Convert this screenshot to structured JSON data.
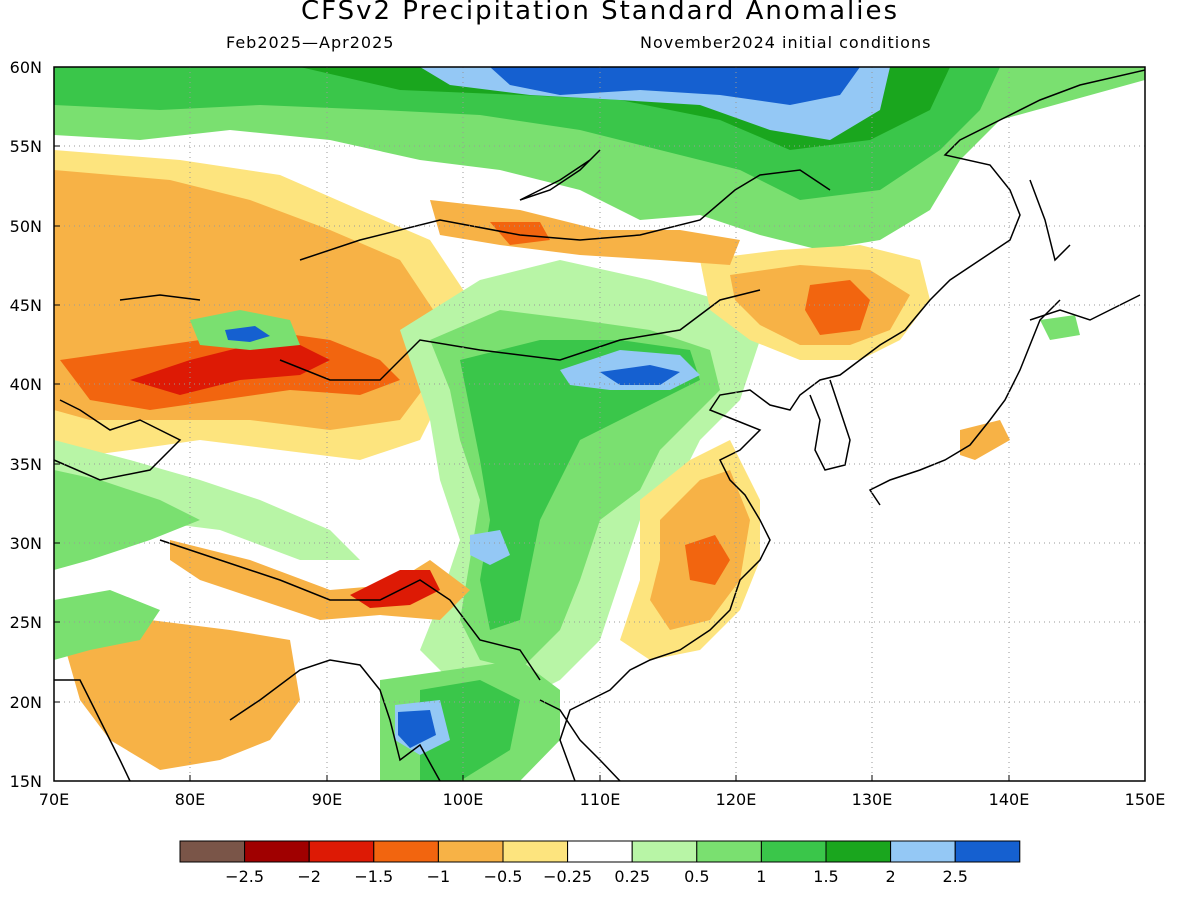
{
  "title": "CFSv2 Precipitation Standard Anomalies",
  "subtitle_left": "Feb2025—Apr2025",
  "subtitle_right": "November2024 initial conditions",
  "lon_labels": [
    "70E",
    "80E",
    "90E",
    "100E",
    "110E",
    "120E",
    "130E",
    "140E",
    "150E"
  ],
  "lat_labels": [
    "15N",
    "20N",
    "25N",
    "30N",
    "35N",
    "40N",
    "45N",
    "50N",
    "55N",
    "60N"
  ],
  "legend": {
    "labels": [
      "−2.5",
      "−2",
      "−1.5",
      "−1",
      "−0.5",
      "−0.25",
      "0.25",
      "0.5",
      "1",
      "1.5",
      "2",
      "2.5"
    ],
    "colors": [
      "#7a5548",
      "#a00000",
      "#dd1a05",
      "#f2650f",
      "#f7b246",
      "#fde47e",
      "#ffffff",
      "#b8f5a6",
      "#7ae070",
      "#3ac64a",
      "#1aa61e",
      "#94c8f5",
      "#1560d0"
    ]
  },
  "colors": {
    "green_light": "#b8f5a6",
    "green": "#7ae070",
    "green_mid": "#3ac64a",
    "green_dark": "#1aa61e",
    "blue_light": "#94c8f5",
    "blue": "#1560d0",
    "yellow": "#fde47e",
    "orange_light": "#f7b246",
    "orange": "#f2650f",
    "red": "#dd1a05",
    "dark_red": "#a00000",
    "brown": "#7a5548",
    "coast": "#000000",
    "grid": "#999999"
  }
}
